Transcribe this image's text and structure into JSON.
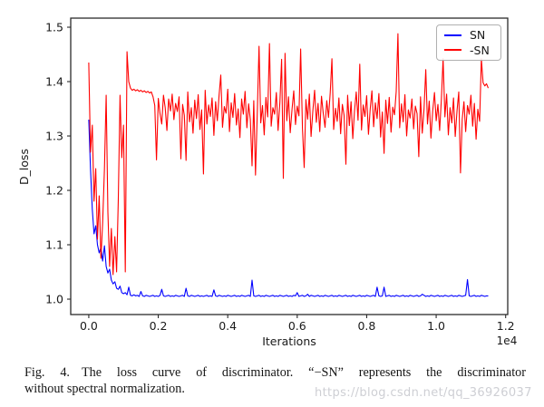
{
  "chart_data": {
    "type": "line",
    "title": "",
    "xlabel": "Iterations",
    "ylabel": "D_loss",
    "x_offset_label": "1e4",
    "x_unit_scale": 10000,
    "xlim": [
      -0.052,
      1.206
    ],
    "ylim": [
      0.9717,
      1.5167
    ],
    "xtick_values": [
      0.0,
      0.2,
      0.4,
      0.6,
      0.8,
      1.0,
      1.2
    ],
    "xtick_labels": [
      "0.0",
      "0.2",
      "0.4",
      "0.6",
      "0.8",
      "1.0",
      "1.2"
    ],
    "ytick_values": [
      1.0,
      1.1,
      1.2,
      1.3,
      1.4,
      1.5
    ],
    "ytick_labels": [
      "1.0",
      "1.1",
      "1.2",
      "1.3",
      "1.4",
      "1.5"
    ],
    "grid": false,
    "legend_position": "upper right",
    "x_start": 0.0,
    "x_step": 0.005,
    "series": [
      {
        "name": "SN",
        "color": "#0000ff",
        "values": [
          1.33,
          1.24,
          1.165,
          1.12,
          1.135,
          1.1,
          1.085,
          1.095,
          1.07,
          1.098,
          1.06,
          1.048,
          1.055,
          1.035,
          1.028,
          1.032,
          1.02,
          1.018,
          1.024,
          1.012,
          1.01,
          1.012,
          1.008,
          1.022,
          1.007,
          1.006,
          1.008,
          1.006,
          1.007,
          1.005,
          1.014,
          1.006,
          1.005,
          1.007,
          1.006,
          1.005,
          1.006,
          1.007,
          1.005,
          1.006,
          1.005,
          1.007,
          1.018,
          1.006,
          1.005,
          1.006,
          1.007,
          1.005,
          1.006,
          1.005,
          1.007,
          1.006,
          1.005,
          1.006,
          1.007,
          1.005,
          1.02,
          1.006,
          1.005,
          1.007,
          1.006,
          1.005,
          1.006,
          1.007,
          1.005,
          1.006,
          1.005,
          1.006,
          1.007,
          1.005,
          1.006,
          1.005,
          1.017,
          1.006,
          1.005,
          1.007,
          1.006,
          1.005,
          1.006,
          1.005,
          1.007,
          1.006,
          1.005,
          1.006,
          1.007,
          1.005,
          1.006,
          1.005,
          1.007,
          1.006,
          1.005,
          1.006,
          1.007,
          1.005,
          1.035,
          1.006,
          1.005,
          1.006,
          1.007,
          1.005,
          1.006,
          1.005,
          1.007,
          1.006,
          1.005,
          1.006,
          1.007,
          1.005,
          1.006,
          1.005,
          1.007,
          1.006,
          1.005,
          1.006,
          1.007,
          1.005,
          1.006,
          1.005,
          1.007,
          1.006,
          1.012,
          1.005,
          1.006,
          1.007,
          1.005,
          1.006,
          1.009,
          1.005,
          1.007,
          1.006,
          1.005,
          1.006,
          1.007,
          1.005,
          1.006,
          1.005,
          1.007,
          1.006,
          1.005,
          1.006,
          1.007,
          1.005,
          1.006,
          1.005,
          1.007,
          1.006,
          1.005,
          1.006,
          1.007,
          1.005,
          1.006,
          1.005,
          1.007,
          1.006,
          1.005,
          1.006,
          1.007,
          1.005,
          1.006,
          1.005,
          1.007,
          1.006,
          1.005,
          1.006,
          1.007,
          1.005,
          1.022,
          1.006,
          1.005,
          1.006,
          1.022,
          1.005,
          1.006,
          1.007,
          1.005,
          1.006,
          1.005,
          1.007,
          1.006,
          1.005,
          1.006,
          1.007,
          1.005,
          1.006,
          1.005,
          1.007,
          1.006,
          1.005,
          1.006,
          1.007,
          1.005,
          1.006,
          1.009,
          1.007,
          1.005,
          1.006,
          1.005,
          1.007,
          1.006,
          1.005,
          1.006,
          1.007,
          1.005,
          1.006,
          1.005,
          1.007,
          1.006,
          1.005,
          1.006,
          1.007,
          1.005,
          1.006,
          1.005,
          1.007,
          1.006,
          1.005,
          1.006,
          1.007,
          1.036,
          1.006,
          1.005,
          1.006,
          1.007,
          1.005,
          1.006,
          1.005,
          1.007,
          1.006,
          1.005,
          1.006,
          1.006
        ]
      },
      {
        "name": "-SN",
        "color": "#ff0000",
        "values": [
          1.435,
          1.27,
          1.32,
          1.18,
          1.24,
          1.11,
          1.19,
          1.075,
          1.14,
          1.24,
          1.375,
          1.16,
          1.06,
          1.13,
          1.045,
          1.115,
          1.05,
          1.185,
          1.375,
          1.26,
          1.32,
          1.05,
          1.455,
          1.4,
          1.388,
          1.384,
          1.386,
          1.383,
          1.385,
          1.382,
          1.384,
          1.381,
          1.383,
          1.38,
          1.382,
          1.379,
          1.381,
          1.372,
          1.356,
          1.256,
          1.369,
          1.341,
          1.322,
          1.375,
          1.352,
          1.31,
          1.368,
          1.346,
          1.377,
          1.33,
          1.36,
          1.345,
          1.372,
          1.258,
          1.358,
          1.338,
          1.255,
          1.381,
          1.326,
          1.352,
          1.305,
          1.366,
          1.332,
          1.376,
          1.312,
          1.348,
          1.23,
          1.384,
          1.322,
          1.357,
          1.336,
          1.37,
          1.301,
          1.363,
          1.328,
          1.374,
          1.412,
          1.316,
          1.354,
          1.342,
          1.386,
          1.308,
          1.361,
          1.334,
          1.378,
          1.32,
          1.35,
          1.297,
          1.368,
          1.34,
          1.382,
          1.315,
          1.359,
          1.33,
          1.245,
          1.365,
          1.228,
          1.344,
          1.465,
          1.324,
          1.356,
          1.302,
          1.371,
          1.335,
          1.47,
          1.318,
          1.352,
          1.34,
          1.38,
          1.31,
          1.362,
          1.441,
          1.222,
          1.452,
          1.328,
          1.372,
          1.306,
          1.349,
          1.383,
          1.321,
          1.355,
          1.337,
          1.46,
          1.314,
          1.242,
          1.367,
          1.331,
          1.377,
          1.299,
          1.347,
          1.384,
          1.325,
          1.36,
          1.308,
          1.373,
          1.342,
          1.316,
          1.365,
          1.334,
          1.379,
          1.442,
          1.312,
          1.351,
          1.327,
          1.37,
          1.304,
          1.358,
          1.338,
          1.248,
          1.375,
          1.319,
          1.363,
          1.295,
          1.346,
          1.381,
          1.329,
          1.432,
          1.311,
          1.357,
          1.336,
          1.374,
          1.303,
          1.349,
          1.383,
          1.317,
          1.361,
          1.332,
          1.378,
          1.298,
          1.344,
          1.268,
          1.366,
          1.323,
          1.371,
          1.307,
          1.353,
          1.339,
          1.382,
          1.488,
          1.315,
          1.359,
          1.326,
          1.376,
          1.3,
          1.348,
          1.333,
          1.368,
          1.313,
          1.355,
          1.341,
          1.262,
          1.372,
          1.305,
          1.35,
          1.422,
          1.322,
          1.364,
          1.296,
          1.345,
          1.38,
          1.328,
          1.358,
          1.31,
          1.367,
          1.442,
          1.335,
          1.377,
          1.302,
          1.352,
          1.324,
          1.37,
          1.299,
          1.347,
          1.381,
          1.232,
          1.331,
          1.363,
          1.308,
          1.356,
          1.34,
          1.375,
          1.318,
          1.36,
          1.294,
          1.349,
          1.327,
          1.442,
          1.398,
          1.392,
          1.396,
          1.388
        ]
      }
    ]
  },
  "caption": {
    "fig_label": "Fig. 4.",
    "line1": "The loss curve of discriminator. “−SN” represents the discriminator",
    "line2": "without spectral normalization."
  },
  "watermark": {
    "text": "https://blog.csdn.net/qq_36926037"
  },
  "style_colors": {
    "sn_line": "#0000ff",
    "neg_sn_line": "#ff0000",
    "axis": "#2b2b2b"
  }
}
